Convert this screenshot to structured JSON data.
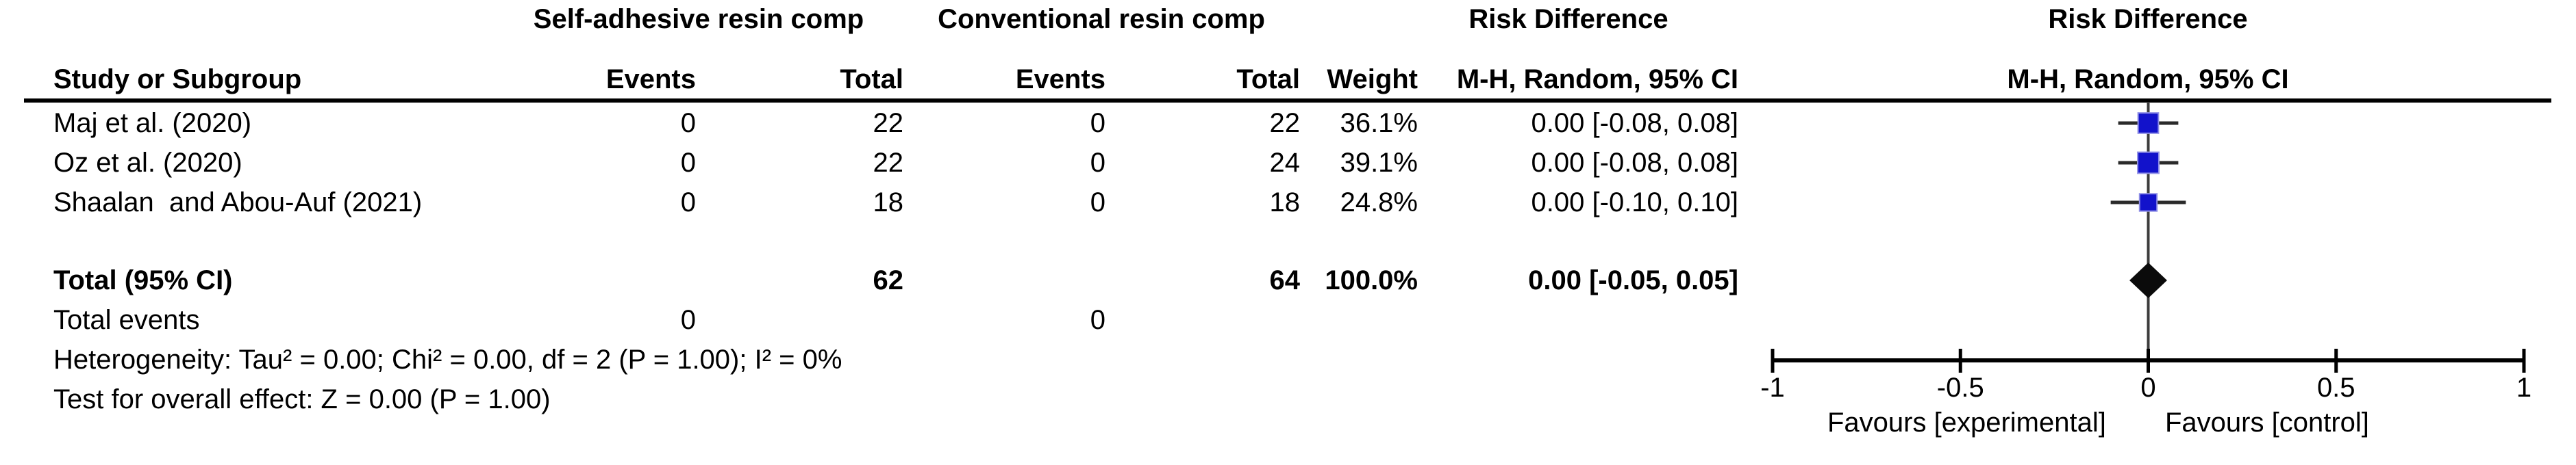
{
  "figure": {
    "headers": {
      "group_experimental": "Self-adhesive resin comp",
      "group_control": "Conventional resin comp",
      "risk_difference_text_col": "Risk Difference",
      "mh_random_ci_text_col": "M-H, Random, 95% CI",
      "risk_difference_plot_col": "Risk Difference",
      "mh_random_ci_plot_col": "M-H, Random, 95% CI",
      "study_or_subgroup": "Study or Subgroup",
      "events_exp": "Events",
      "total_exp": "Total",
      "events_ctrl": "Events",
      "total_ctrl": "Total",
      "weight": "Weight"
    },
    "rows": [
      {
        "study": "Maj et al. (2020)",
        "events1": "0",
        "total1": "22",
        "events2": "0",
        "total2": "22",
        "weight": "36.1%",
        "ci": "0.00 [-0.08, 0.08]"
      },
      {
        "study": "Oz et al. (2020)",
        "events1": "0",
        "total1": "22",
        "events2": "0",
        "total2": "24",
        "weight": "39.1%",
        "ci": "0.00 [-0.08, 0.08]"
      },
      {
        "study": "Shaalan  and Abou-Auf (2021)",
        "events1": "0",
        "total1": "18",
        "events2": "0",
        "total2": "18",
        "weight": "24.8%",
        "ci": "0.00 [-0.10, 0.10]"
      }
    ],
    "total_row": {
      "label": "Total (95% CI)",
      "total1": "62",
      "total2": "64",
      "weight": "100.0%",
      "ci": "0.00 [-0.05, 0.05]"
    },
    "total_events_row": {
      "label": "Total events",
      "events1": "0",
      "events2": "0"
    },
    "heterogeneity": "Heterogeneity: Tau² = 0.00; Chi² = 0.00, df = 2 (P = 1.00); I² = 0%",
    "overall_effect": "Test for overall effect: Z = 0.00 (P = 1.00)",
    "favours_left": "Favours [experimental]",
    "favours_right": "Favours [control]"
  },
  "chart_data": {
    "type": "forest",
    "effect_measure": "Risk Difference",
    "method": "M-H, Random, 95% CI",
    "x_axis": {
      "min": -1,
      "max": 1,
      "ticks": [
        -1,
        -0.5,
        0,
        0.5,
        1
      ],
      "tick_labels": [
        "-1",
        "-0.5",
        "0",
        "0.5",
        "1"
      ]
    },
    "studies": [
      {
        "name": "Maj et al. (2020)",
        "events_exp": 0,
        "total_exp": 22,
        "events_ctrl": 0,
        "total_ctrl": 22,
        "weight_pct": 36.1,
        "rd": 0.0,
        "ci_low": -0.08,
        "ci_high": 0.08
      },
      {
        "name": "Oz et al. (2020)",
        "events_exp": 0,
        "total_exp": 22,
        "events_ctrl": 0,
        "total_ctrl": 24,
        "weight_pct": 39.1,
        "rd": 0.0,
        "ci_low": -0.08,
        "ci_high": 0.08
      },
      {
        "name": "Shaalan  and Abou-Auf (2021)",
        "events_exp": 0,
        "total_exp": 18,
        "events_ctrl": 0,
        "total_ctrl": 18,
        "weight_pct": 24.8,
        "rd": 0.0,
        "ci_low": -0.1,
        "ci_high": 0.1
      }
    ],
    "total": {
      "total_exp": 62,
      "total_ctrl": 64,
      "weight_pct": 100.0,
      "rd": 0.0,
      "ci_low": -0.05,
      "ci_high": 0.05,
      "marker": "diamond"
    },
    "marker_color": "#1212cb",
    "marker_edge_color": "#8f8fe6",
    "diamond_color": "#0b0b0b",
    "heterogeneity": {
      "tau2": 0.0,
      "chi2": 0.0,
      "df": 2,
      "p": 1.0,
      "i2_pct": 0
    },
    "overall_effect": {
      "z": 0.0,
      "p": 1.0
    }
  }
}
